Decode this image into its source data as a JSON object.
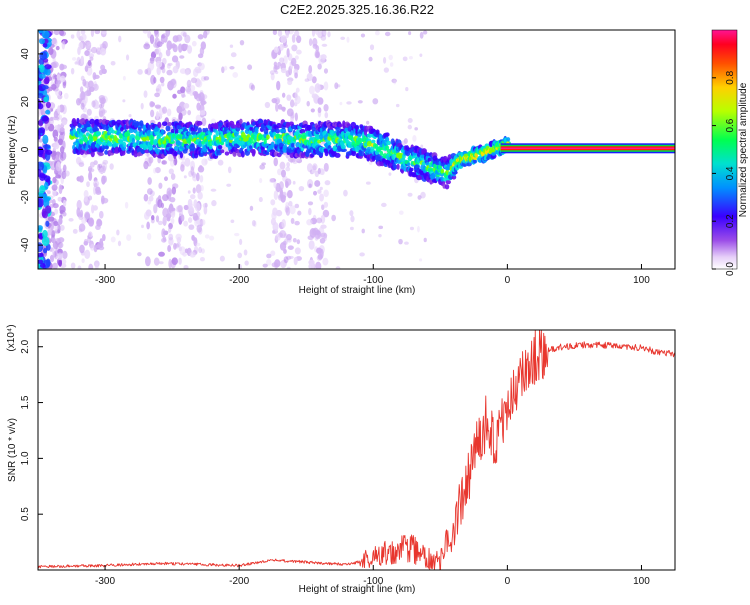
{
  "page_title": "C2E2.2025.325.16.36.R22",
  "chart_data": [
    {
      "type": "heatmap",
      "title": "C2E2.2025.325.16.36.R22",
      "xlabel": "Height of straight line (km)",
      "ylabel": "Frequency (Hz)",
      "xlim": [
        -350,
        125
      ],
      "ylim": [
        -50,
        50
      ],
      "xticks": [
        -300,
        -200,
        -100,
        0,
        100
      ],
      "yticks": [
        -40,
        -20,
        0,
        20,
        40
      ],
      "colorbar": {
        "label": "Normalized spectral amplitude",
        "range": [
          0.0,
          1.0
        ],
        "ticks": [
          0.0,
          0.2,
          0.4,
          0.6,
          0.8
        ],
        "colors": [
          "#ffffff",
          "#d9b8f5",
          "#8a2be2",
          "#3300ff",
          "#00c8ff",
          "#00ff66",
          "#ccff00",
          "#ff9900",
          "#ff0000",
          "#ff1493"
        ]
      },
      "ridge": {
        "description": "dominant frequency track",
        "x": [
          -320,
          -300,
          -280,
          -260,
          -240,
          -220,
          -200,
          -180,
          -160,
          -140,
          -120,
          -100,
          -80,
          -60,
          -45,
          -35,
          -20,
          -5,
          0,
          20,
          60,
          125
        ],
        "y": [
          5,
          5,
          5,
          4,
          4,
          4,
          5,
          5,
          4,
          4,
          4,
          2,
          -3,
          -7,
          -10,
          -4,
          -2,
          1,
          2,
          0.5,
          0.5,
          0.5
        ]
      },
      "tones": [
        {
          "description": "strong continuous tone",
          "x_range": [
            -5,
            125
          ],
          "y": 0.5,
          "amplitude": 1.0
        }
      ]
    },
    {
      "type": "line",
      "xlabel": "Height of straight line (km)",
      "ylabel": "SNR (10 * v/v)",
      "y_multiplier": "(x10⁴)",
      "xlim": [
        -350,
        125
      ],
      "ylim": [
        0,
        2.15
      ],
      "xticks": [
        -300,
        -200,
        -100,
        0,
        100
      ],
      "yticks": [
        0.5,
        1.0,
        1.5,
        2.0
      ],
      "ytick_labels": [
        "0.5",
        "1.0",
        "1.5",
        "2.0"
      ],
      "color": "#e8362e",
      "series": [
        {
          "name": "SNR",
          "x": [
            -350,
            -300,
            -260,
            -230,
            -200,
            -175,
            -150,
            -120,
            -100,
            -90,
            -80,
            -70,
            -60,
            -50,
            -45,
            -40,
            -35,
            -30,
            -25,
            -20,
            -15,
            -10,
            -5,
            0,
            5,
            10,
            20,
            30,
            40,
            60,
            80,
            100,
            110,
            125
          ],
          "y": [
            0.03,
            0.04,
            0.06,
            0.05,
            0.04,
            0.09,
            0.07,
            0.05,
            0.1,
            0.15,
            0.22,
            0.18,
            0.12,
            0.08,
            0.25,
            0.4,
            0.55,
            0.8,
            1.05,
            1.2,
            1.35,
            1.15,
            1.3,
            1.45,
            1.55,
            1.75,
            1.9,
            1.97,
            2.0,
            2.02,
            2.01,
            1.99,
            1.96,
            1.93
          ]
        }
      ]
    }
  ]
}
